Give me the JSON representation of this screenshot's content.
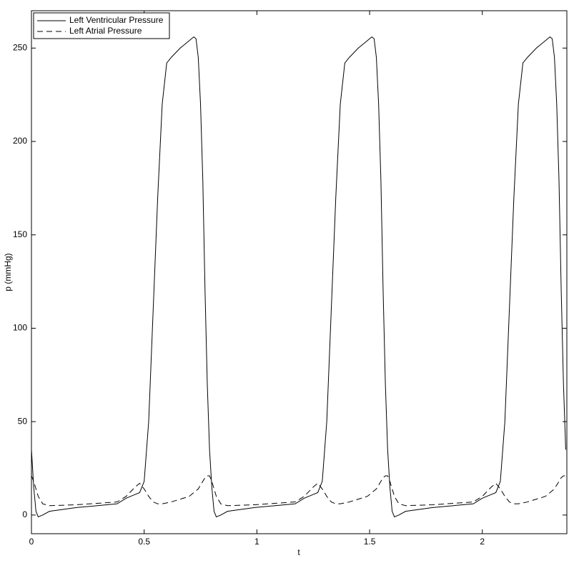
{
  "chart_data": {
    "type": "line",
    "x_label": "t",
    "y_label": "p (mmHg)",
    "x": [
      0,
      0.01,
      0.02,
      0.03,
      0.05,
      0.08,
      0.2,
      0.38,
      0.42,
      0.46,
      0.48,
      0.5,
      0.52,
      0.54,
      0.56,
      0.58,
      0.6,
      0.62,
      0.66,
      0.7,
      0.72,
      0.73,
      0.74,
      0.75,
      0.76,
      0.77,
      0.78,
      0.79,
      0.8,
      0.81,
      0.82,
      0.84,
      0.87,
      0.99,
      1.17,
      1.21,
      1.25,
      1.27,
      1.29,
      1.31,
      1.33,
      1.35,
      1.37,
      1.39,
      1.41,
      1.45,
      1.49,
      1.51,
      1.52,
      1.53,
      1.54,
      1.55,
      1.56,
      1.57,
      1.58,
      1.59,
      1.6,
      1.61,
      1.63,
      1.66,
      1.78,
      1.96,
      2,
      2.04,
      2.06,
      2.08,
      2.1,
      2.12,
      2.14,
      2.16,
      2.18,
      2.2,
      2.24,
      2.28,
      2.3,
      2.31,
      2.32,
      2.33,
      2.34,
      2.35,
      2.36,
      2.37
    ],
    "series": [
      {
        "name": "Left Ventricular Pressure",
        "color": "#000000",
        "linestyle": "solid",
        "values": [
          35,
          15,
          2,
          -1,
          0,
          2,
          4,
          6,
          9,
          11,
          12,
          18,
          50,
          110,
          170,
          220,
          242,
          245,
          250,
          254,
          256,
          255,
          245,
          220,
          180,
          120,
          70,
          35,
          15,
          2,
          -1,
          0,
          2,
          4,
          6,
          9,
          11,
          12,
          18,
          50,
          110,
          170,
          220,
          242,
          245,
          250,
          254,
          256,
          255,
          245,
          220,
          180,
          120,
          70,
          35,
          15,
          2,
          -1,
          0,
          2,
          4,
          6,
          9,
          11,
          12,
          18,
          50,
          110,
          170,
          220,
          242,
          245,
          250,
          254,
          256,
          255,
          245,
          220,
          180,
          120,
          70,
          35
        ]
      },
      {
        "name": "Left Atrial Pressure",
        "color": "#000000",
        "linestyle": "dashed",
        "values": [
          21,
          18,
          14,
          10,
          6,
          5,
          5.5,
          7,
          10,
          15,
          17,
          14,
          10,
          7,
          6,
          6,
          6.5,
          7,
          8.5,
          10,
          12,
          13,
          14,
          16,
          18,
          20,
          21,
          21,
          18,
          14,
          10,
          6,
          5,
          5.5,
          7,
          10,
          15,
          17,
          14,
          10,
          7,
          6,
          6,
          6.5,
          7,
          8.5,
          10,
          12,
          13,
          14,
          16,
          18,
          20,
          21,
          21,
          18,
          14,
          10,
          6,
          5,
          5.5,
          7,
          10,
          15,
          17,
          14,
          10,
          7,
          6,
          6,
          6.5,
          7,
          8.5,
          10,
          12,
          13,
          14,
          16,
          18,
          20,
          21,
          21
        ]
      }
    ],
    "xlim": [
      0,
      2.375
    ],
    "ylim": [
      -10,
      270
    ],
    "xticks": [
      0,
      0.5,
      1,
      1.5,
      2
    ],
    "yticks": [
      0,
      50,
      100,
      150,
      200,
      250
    ],
    "grid": false,
    "legend": "upper-left"
  }
}
